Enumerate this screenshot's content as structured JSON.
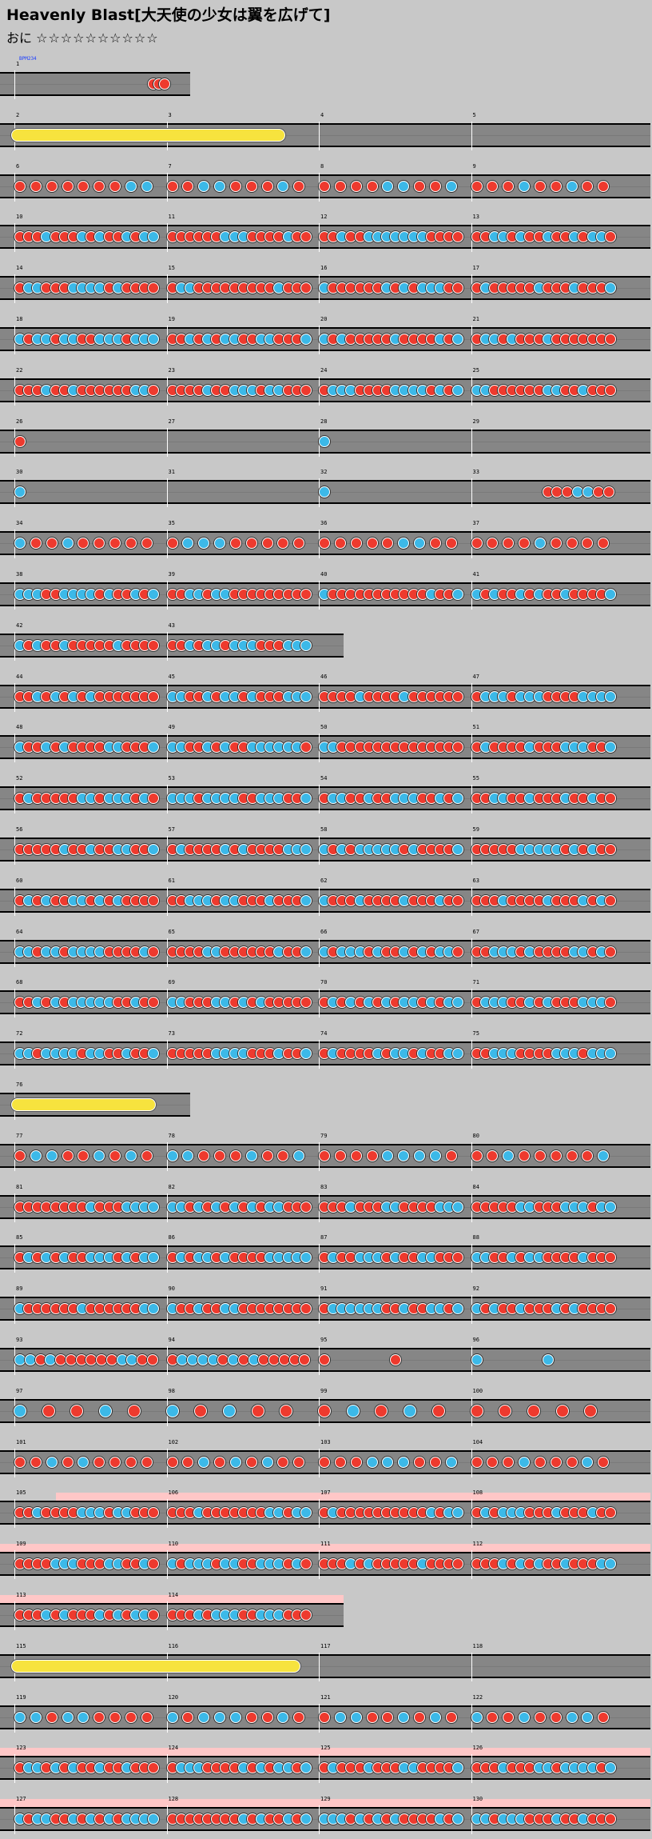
{
  "header": {
    "title": "Heavenly  Blast[大天使の少女は翼を広げて]",
    "course": "おに",
    "stars": "☆☆☆☆☆☆☆☆☆☆",
    "bpm_label": "BPM234"
  },
  "colors": {
    "don": "#ee3a2e",
    "ka": "#3cb9e8",
    "roll": "#f7e33e",
    "gogo": "#ffc7c7"
  },
  "rows": [
    {
      "bars": [
        "1"
      ],
      "partial": true,
      "intro": true,
      "pattern": "end3"
    },
    {
      "bars": [
        "2",
        "3",
        "4",
        "5"
      ],
      "roll": [
        0,
        1.8
      ]
    },
    {
      "bars": [
        "6",
        "7",
        "8",
        "9"
      ],
      "pattern": "mixed"
    },
    {
      "bars": [
        "10",
        "11",
        "12",
        "13"
      ],
      "pattern": "dense"
    },
    {
      "bars": [
        "14",
        "15",
        "16",
        "17"
      ],
      "pattern": "dense"
    },
    {
      "bars": [
        "18",
        "19",
        "20",
        "21"
      ],
      "pattern": "dense"
    },
    {
      "bars": [
        "22",
        "23",
        "24",
        "25"
      ],
      "pattern": "dense"
    },
    {
      "bars": [
        "26",
        "27",
        "28",
        "29"
      ],
      "pattern": "sparse"
    },
    {
      "bars": [
        "30",
        "31",
        "32",
        "33"
      ],
      "pattern": "sparse"
    },
    {
      "bars": [
        "34",
        "35",
        "36",
        "37"
      ],
      "pattern": "mixed"
    },
    {
      "bars": [
        "38",
        "39",
        "40",
        "41"
      ],
      "pattern": "dense"
    },
    {
      "bars": [
        "42",
        "43"
      ],
      "partial": true,
      "pattern": "dense"
    },
    {
      "bars": [
        "44",
        "45",
        "46",
        "47"
      ],
      "pattern": "dense"
    },
    {
      "bars": [
        "48",
        "49",
        "50",
        "51"
      ],
      "pattern": "dense"
    },
    {
      "bars": [
        "52",
        "53",
        "54",
        "55"
      ],
      "pattern": "dense"
    },
    {
      "bars": [
        "56",
        "57",
        "58",
        "59"
      ],
      "pattern": "dense"
    },
    {
      "bars": [
        "60",
        "61",
        "62",
        "63"
      ],
      "pattern": "dense"
    },
    {
      "bars": [
        "64",
        "65",
        "66",
        "67"
      ],
      "pattern": "dense"
    },
    {
      "bars": [
        "68",
        "69",
        "70",
        "71"
      ],
      "pattern": "dense"
    },
    {
      "bars": [
        "72",
        "73",
        "74",
        "75"
      ],
      "pattern": "dense"
    },
    {
      "bars": [
        "76"
      ],
      "partial": true,
      "roll": [
        0,
        0.95
      ]
    },
    {
      "bars": [
        "77",
        "78",
        "79",
        "80"
      ],
      "pattern": "mixed"
    },
    {
      "bars": [
        "81",
        "82",
        "83",
        "84"
      ],
      "pattern": "dense"
    },
    {
      "bars": [
        "85",
        "86",
        "87",
        "88"
      ],
      "pattern": "dense"
    },
    {
      "bars": [
        "89",
        "90",
        "91",
        "92"
      ],
      "pattern": "dense"
    },
    {
      "bars": [
        "93",
        "94",
        "95",
        "96"
      ],
      "pattern": "half"
    },
    {
      "bars": [
        "97",
        "98",
        "99",
        "100"
      ],
      "pattern": "big"
    },
    {
      "bars": [
        "101",
        "102",
        "103",
        "104"
      ],
      "pattern": "mixed"
    },
    {
      "bars": [
        "105",
        "106",
        "107",
        "108"
      ],
      "pattern": "dense",
      "gogo": true
    },
    {
      "bars": [
        "109",
        "110",
        "111",
        "112"
      ],
      "pattern": "dense",
      "gogo": true
    },
    {
      "bars": [
        "113",
        "114"
      ],
      "partial": true,
      "pattern": "dense",
      "gogo": true
    },
    {
      "bars": [
        "115",
        "116",
        "117",
        "118"
      ],
      "roll": [
        0,
        1.9
      ],
      "pattern": "tail"
    },
    {
      "bars": [
        "119",
        "120",
        "121",
        "122"
      ],
      "pattern": "mixed"
    },
    {
      "bars": [
        "123",
        "124",
        "125",
        "126"
      ],
      "pattern": "dense",
      "gogo": true
    },
    {
      "bars": [
        "127",
        "128",
        "129",
        "130"
      ],
      "pattern": "dense",
      "gogo": true
    }
  ]
}
